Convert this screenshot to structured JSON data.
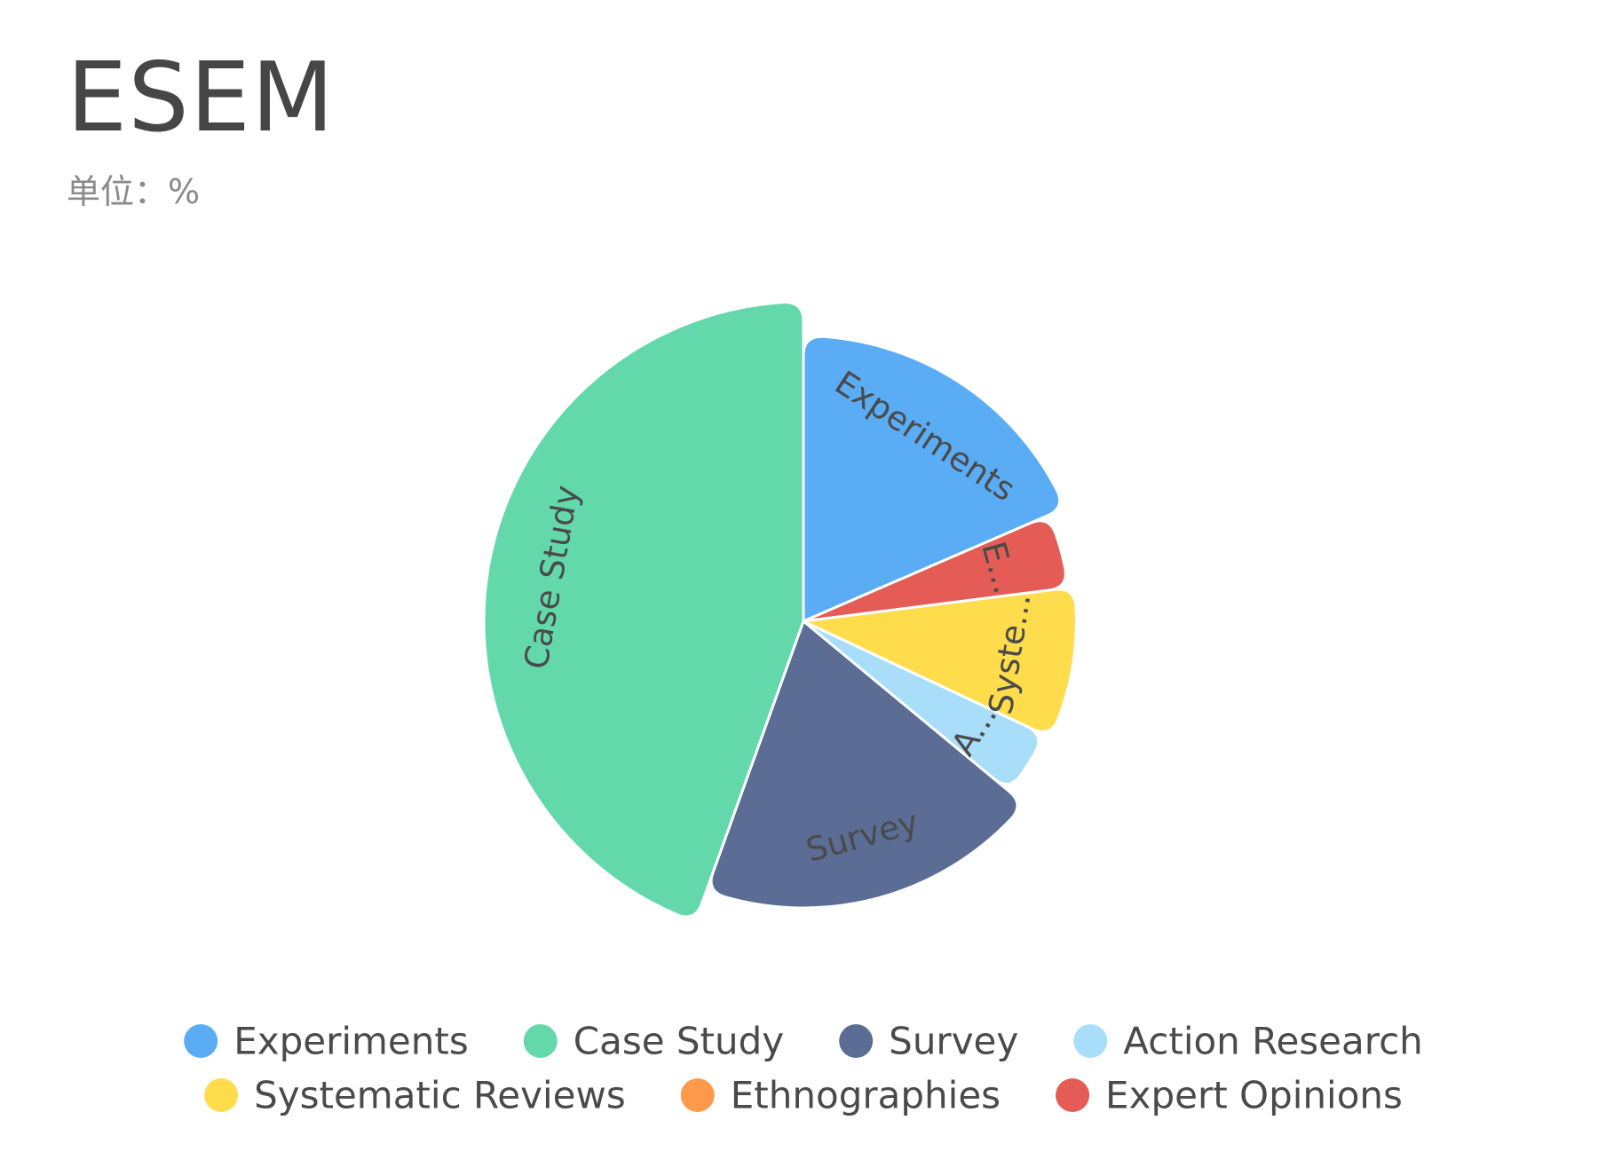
{
  "chart_data": {
    "type": "pie",
    "title": "ESEM",
    "subtitle": "单位：%",
    "start_angle": "top",
    "direction": "clockwise",
    "slices": [
      {
        "label": "Experiments",
        "short_label": "Experiments",
        "value": 18.5,
        "color": "#5AADF5"
      },
      {
        "label": "Expert Opinions",
        "short_label": "E...",
        "value": 4.5,
        "color": "#E55B56"
      },
      {
        "label": "Systematic Reviews",
        "short_label": "Syste...",
        "value": 9.0,
        "color": "#FEDC4C"
      },
      {
        "label": "Action Research",
        "short_label": "A...",
        "value": 4.0,
        "color": "#A9DEFB"
      },
      {
        "label": "Survey",
        "short_label": "Survey",
        "value": 19.5,
        "color": "#5B6C95"
      },
      {
        "label": "Case Study",
        "short_label": "Case Study",
        "value": 44.5,
        "color": "#63D8AB"
      },
      {
        "label": "Ethnographies",
        "short_label": "",
        "value": 0,
        "color": "#FF9A4D"
      }
    ],
    "legend": {
      "position": "bottom",
      "items": [
        {
          "label": "Experiments",
          "color": "#5AADF5"
        },
        {
          "label": "Case Study",
          "color": "#63D8AB"
        },
        {
          "label": "Survey",
          "color": "#5B6C95"
        },
        {
          "label": "Action Research",
          "color": "#A9DEFB"
        },
        {
          "label": "Systematic Reviews",
          "color": "#FEDC4C"
        },
        {
          "label": "Ethnographies",
          "color": "#FF9A4D"
        },
        {
          "label": "Expert Opinions",
          "color": "#E55B56"
        }
      ]
    }
  }
}
